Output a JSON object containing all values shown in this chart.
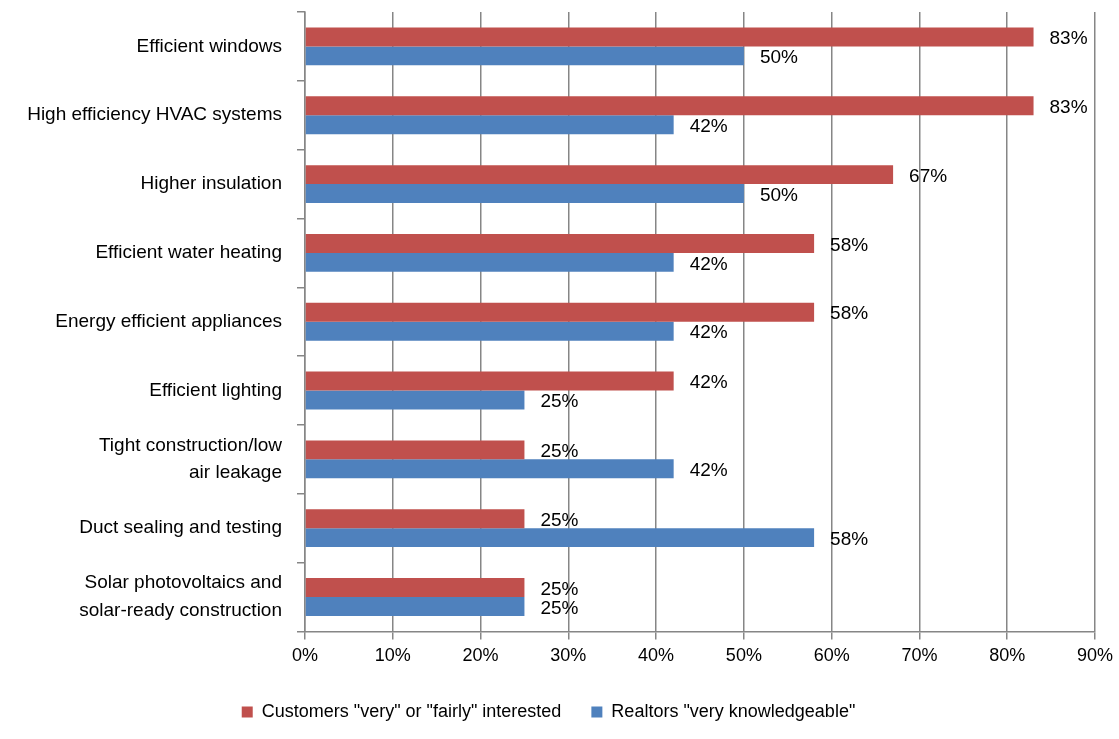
{
  "chart_data": {
    "type": "bar",
    "orientation": "horizontal",
    "categories": [
      "Efficient windows",
      "High efficiency HVAC systems",
      "Higher insulation",
      "Efficient water heating",
      "Energy efficient appliances",
      "Efficient lighting",
      "Tight construction/low air leakage",
      "Duct sealing and testing",
      "Solar photovoltaics and solar-ready construction"
    ],
    "series": [
      {
        "name": "Customers \"very\" or \"fairly\" interested",
        "color": "#c0504d",
        "values": [
          83,
          83,
          67,
          58,
          58,
          42,
          25,
          25,
          25
        ],
        "value_labels": [
          "83%",
          "83%",
          "67%",
          "58%",
          "58%",
          "42%",
          "25%",
          "25%",
          "25%"
        ]
      },
      {
        "name": "Realtors \"very knowledgeable\"",
        "color": "#4f81bd",
        "values": [
          50,
          42,
          50,
          42,
          42,
          25,
          42,
          58,
          25
        ],
        "value_labels": [
          "50%",
          "42%",
          "50%",
          "42%",
          "42%",
          "25%",
          "42%",
          "58%",
          "25%"
        ]
      }
    ],
    "xlim": [
      0,
      90
    ],
    "xticks": [
      {
        "value": 0,
        "label": "0%"
      },
      {
        "value": 10,
        "label": "10%"
      },
      {
        "value": 20,
        "label": "20%"
      },
      {
        "value": 30,
        "label": "30%"
      },
      {
        "value": 40,
        "label": "40%"
      },
      {
        "value": 50,
        "label": "50%"
      },
      {
        "value": 60,
        "label": "60%"
      },
      {
        "value": 70,
        "label": "70%"
      },
      {
        "value": 80,
        "label": "80%"
      },
      {
        "value": 90,
        "label": "90%"
      }
    ],
    "grid": "x",
    "legend": "bottom"
  }
}
